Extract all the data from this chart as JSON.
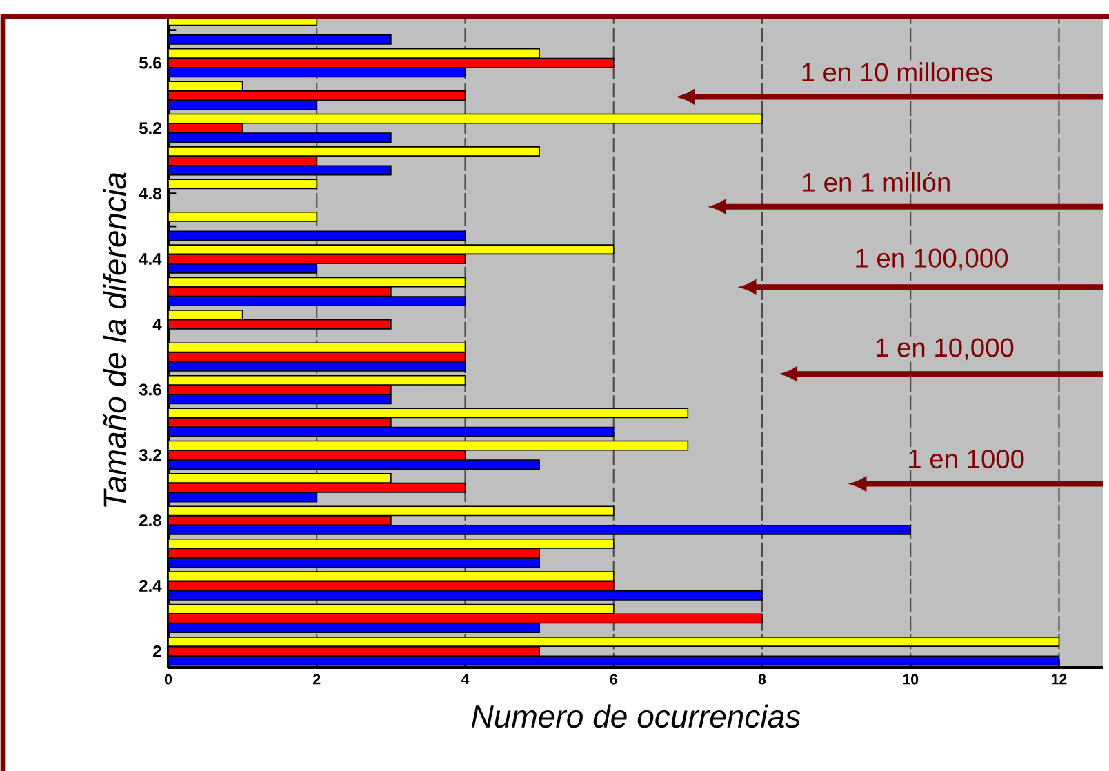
{
  "chart_data": {
    "type": "bar",
    "orientation": "horizontal",
    "xlabel": "Numero de ocurrencias",
    "ylabel": "Tamaño de la diferencia",
    "categories": [
      null,
      "5.6",
      null,
      "5.2",
      null,
      "4.8",
      null,
      "4.4",
      null,
      "4",
      null,
      "3.6",
      null,
      "3.2",
      null,
      "2.8",
      null,
      "2.4",
      null,
      "2"
    ],
    "series": [
      {
        "color": "#0000ff",
        "values": [
          3,
          4,
          2,
          3,
          3,
          null,
          4,
          2,
          4,
          null,
          4,
          3,
          6,
          5,
          2,
          10,
          5,
          8,
          5,
          12
        ]
      },
      {
        "color": "#ff0000",
        "values": [
          null,
          6,
          4,
          1,
          2,
          null,
          null,
          4,
          3,
          3,
          4,
          3,
          3,
          4,
          4,
          3,
          5,
          6,
          8,
          5
        ]
      },
      {
        "color": "#ffff00",
        "values": [
          2,
          5,
          1,
          8,
          5,
          2,
          2,
          6,
          4,
          1,
          4,
          4,
          7,
          7,
          3,
          6,
          6,
          6,
          6,
          12
        ]
      }
    ],
    "xlim": [
      0,
      12.6
    ],
    "xticks": [
      0,
      2,
      4,
      6,
      8,
      10,
      12
    ],
    "grid": "x",
    "annotations": [
      "1 en 10 millones",
      "1 en 1 millón",
      "1 en 100,000",
      "1 en 10,000",
      "1 en 1000"
    ]
  }
}
